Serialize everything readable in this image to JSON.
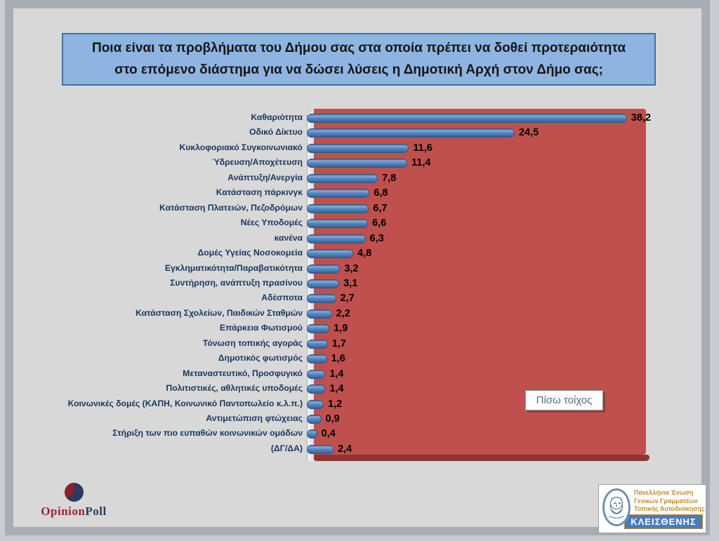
{
  "chart_data": {
    "type": "bar",
    "orientation": "horizontal",
    "title": "Ποια είναι τα προβλήματα του Δήμου σας στα οποία πρέπει να δοθεί προτεραιότητα στο επόμενο διάστημα για να δώσει λύσεις η Δημοτική Αρχή στον Δήμο σας;",
    "categories": [
      "Καθαριότητα",
      "Οδικό Δίκτυο",
      "Κυκλοφοριακό Συγκοινωνιακό",
      "Ύδρευση/Αποχέτευση",
      "Ανάπτυξη/Ανεργία",
      "Κατάσταση πάρκινγκ",
      "Κατάσταση Πλατειών, Πεζοδρόμων",
      "Νέες Υποδομές",
      "κανένα",
      "Δομές Υγείας Νοσοκομεία",
      "Εγκληματικότητα/Παραβατικότητα",
      "Συντήρηση, ανάπτυξη πρασίνου",
      "Αδέσποτα",
      "Κατάσταση Σχολείων, Παιδικών Σταθμών",
      "Επάρκεια Φωτισμού",
      "Τόνωση τοπικής αγοράς",
      "Δημοτικός φωτισμός",
      "Μεταναστευτικό, Προσφυγικό",
      "Πολιτιστικές, αθλητικές υποδομές",
      "Κοινωνικές δομές (ΚΑΠΗ, Κοινωνικό Παντοπωλείο κ.λ.π.)",
      "Αντιμετώπιση φτώχειας",
      "Στήριξη των πιο ευπαθών κοινωνικών ομάδων",
      "(ΔΓ/ΔΑ)"
    ],
    "values": [
      38.2,
      24.5,
      11.6,
      11.4,
      7.8,
      6.8,
      6.7,
      6.6,
      6.3,
      4.8,
      3.2,
      3.1,
      2.7,
      2.2,
      1.9,
      1.7,
      1.6,
      1.4,
      1.4,
      1.2,
      0.9,
      0.4,
      2.4
    ],
    "value_labels": [
      "38,2",
      "24,5",
      "11,6",
      "11,4",
      "7,8",
      "6,8",
      "6,7",
      "6,6",
      "6,3",
      "4,8",
      "3,2",
      "3,1",
      "2,7",
      "2,2",
      "1,9",
      "1,7",
      "1,6",
      "1,4",
      "1,4",
      "1,2",
      "0,9",
      "0,4",
      "2,4"
    ],
    "xlim": [
      0,
      40
    ],
    "grid": false,
    "legend": "none",
    "style": "3d-cylinder-bars",
    "plot_background": "#c0504d",
    "bar_color": "#4f81bd"
  },
  "tooltip": {
    "label": "Πίσω τοίχος"
  },
  "footer": {
    "opinionpoll": {
      "word1": "Opinion",
      "word2": "Poll"
    },
    "kleisthenis": {
      "lines": [
        "Πανελλήνια Ένωση",
        "Γενικών Γραμματέων",
        "Τοπικής Αυτοδιοίκησης"
      ],
      "banner": "ΚΛΕΙΣΘΕΝΗΣ"
    }
  },
  "colors": {
    "page_bg": "#c9ccd1",
    "frame": "#a8adb3",
    "slide_bg": "#d8d8d8",
    "title_fill": "#8eb4e2",
    "title_border": "#4070a9",
    "title_text": "#161616",
    "wall_red": "#c0504d",
    "floor_red": "#8e3431",
    "bar_blue": "#4f81bd",
    "bar_border": "#2f5a87",
    "category_text": "#17375e",
    "value_text": "#000000",
    "tooltip_text": "#5a6b80",
    "opinion_red": "#a02334",
    "opinion_navy": "#2c3a5e",
    "kleisthenis_gold": "#c28a28",
    "kleisthenis_blue": "#4a7db8",
    "portrait_blue": "#6f93ad"
  }
}
